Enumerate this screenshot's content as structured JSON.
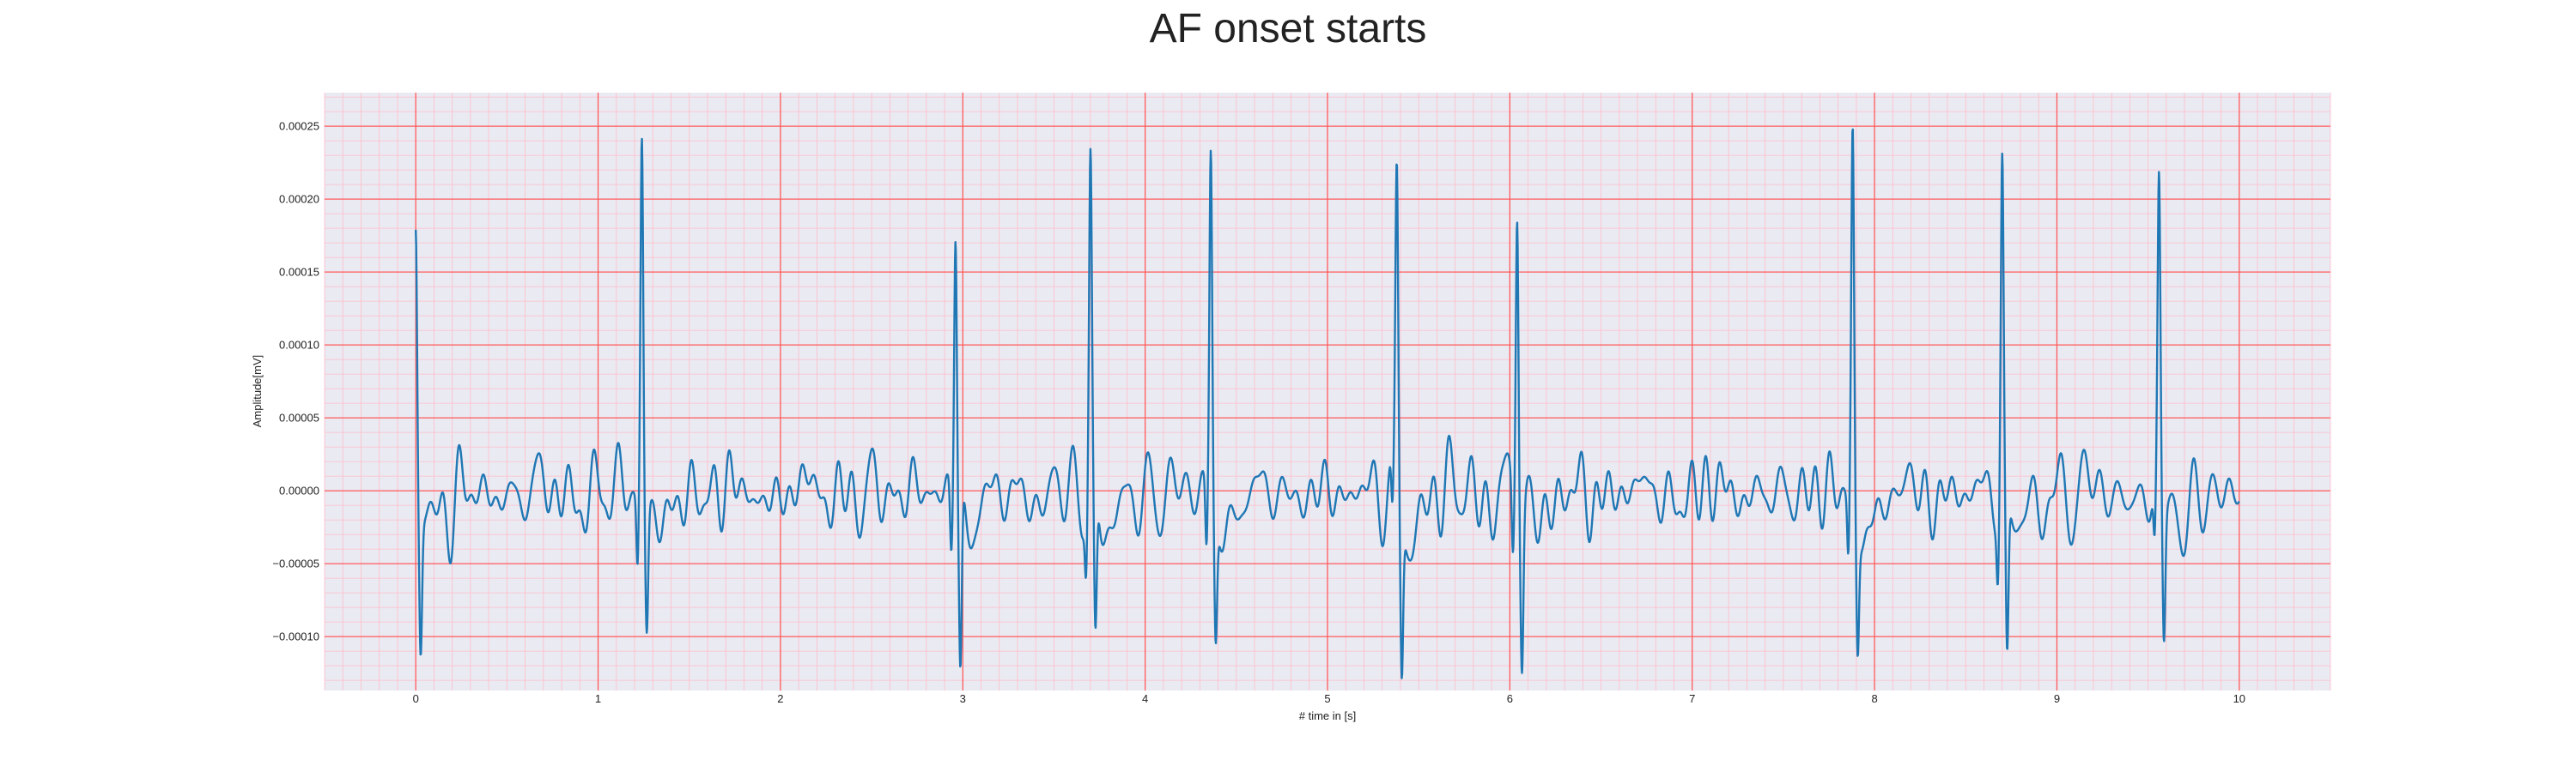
{
  "chart_data": {
    "type": "line",
    "title": "AF onset starts",
    "xlabel": "# time in [s]",
    "ylabel": "Amplitude[mV]",
    "xlim": [
      -0.5,
      10.5
    ],
    "ylim": [
      -0.000137,
      0.000273
    ],
    "xticks": [
      0,
      1,
      2,
      3,
      4,
      5,
      6,
      7,
      8,
      9,
      10
    ],
    "yticks": [
      -0.0001,
      -5e-05,
      0.0,
      5e-05,
      0.0001,
      0.00015,
      0.0002,
      0.00025
    ],
    "ytick_labels": [
      "−0.00010",
      "−0.00005",
      "0.00000",
      "0.00005",
      "0.00010",
      "0.00015",
      "0.00020",
      "0.00025"
    ],
    "grid": true,
    "background_color": "#eaeaf2",
    "major_grid_color": "#ff5a5a",
    "minor_grid_color": "#ffbcc8",
    "line_color": "#1f77b4",
    "beats": [
      {
        "t": 0.0,
        "peak": 0.00019,
        "trough": -9.3e-05
      },
      {
        "t": 1.24,
        "peak": 0.000255,
        "trough": -8.2e-05
      },
      {
        "t": 2.96,
        "peak": 0.0002,
        "trough": -0.000118
      },
      {
        "t": 3.7,
        "peak": 0.000222,
        "trough": -0.000106
      },
      {
        "t": 4.36,
        "peak": 0.000242,
        "trough": -8.6e-05
      },
      {
        "t": 5.38,
        "peak": 0.00021,
        "trough": -0.000111
      },
      {
        "t": 6.04,
        "peak": 0.000222,
        "trough": -0.0001
      },
      {
        "t": 7.88,
        "peak": 0.000245,
        "trough": -8.9e-05
      },
      {
        "t": 8.7,
        "peak": 0.000229,
        "trough": -0.000112
      },
      {
        "t": 9.56,
        "peak": 0.000208,
        "trough": -9.3e-05
      }
    ]
  }
}
